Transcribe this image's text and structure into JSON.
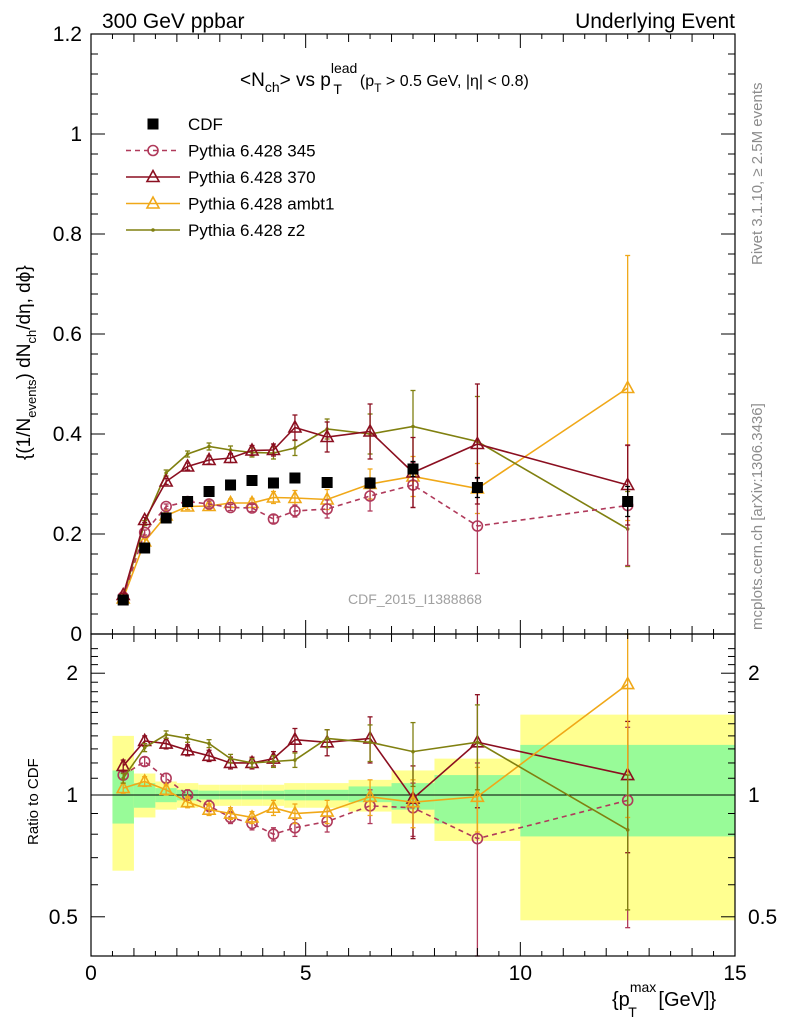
{
  "header": {
    "left": "300 GeV ppbar",
    "right": "Underlying Event"
  },
  "side": {
    "rivet": "Rivet 3.1.10, ≥ 2.5M events",
    "mcplots": "mcplots.cern.ch [arXiv:1306.3436]"
  },
  "watermark": "CDF_2015_I1388868",
  "main_title": {
    "pre": "<N",
    "sub1": "ch",
    "mid": "> vs p",
    "sup": "lead",
    "sub2": "T",
    "cut_a": "(p",
    "cut_sub": "T",
    "cut_b": " > 0.5 GeV, |η| < 0.8)"
  },
  "ylabel_main": {
    "a": "{(1/N",
    "sub1": "events",
    "b": ") dN",
    "sub2": "ch",
    "c": "/dη, dϕ}"
  },
  "ylabel_ratio": "Ratio to CDF",
  "xlabel": {
    "a": "{p",
    "sup": "max",
    "sub": "T",
    "b": " [GeV]}"
  },
  "colors": {
    "cdf": "#000000",
    "p345": "#b03a5b",
    "p370": "#8b0f20",
    "ambt1": "#f0a818",
    "z2": "#808010",
    "band_green": "#98fb98",
    "band_yellow": "#ffff90"
  },
  "chart_data": [
    {
      "type": "scatter",
      "xlim": [
        0,
        15
      ],
      "ylim": [
        0,
        1.2
      ],
      "x_ticks": [
        "0",
        "5",
        "10",
        "15"
      ],
      "y_ticks": [
        "0",
        "0.2",
        "0.4",
        "0.6",
        "0.8",
        "1",
        "1.2"
      ],
      "legend": {
        "placement": "top-left",
        "entries": [
          "CDF",
          "Pythia 6.428 345",
          "Pythia 6.428 370",
          "Pythia 6.428 ambt1",
          "Pythia 6.428 z2"
        ]
      },
      "series": [
        {
          "name": "CDF",
          "marker": "square",
          "color": "#000000",
          "x": [
            0.75,
            1.25,
            1.75,
            2.25,
            2.75,
            3.25,
            3.75,
            4.25,
            4.75,
            5.5,
            6.5,
            7.5,
            9.0,
            12.5
          ],
          "y": [
            0.068,
            0.172,
            0.232,
            0.265,
            0.285,
            0.298,
            0.307,
            0.302,
            0.312,
            0.303,
            0.302,
            0.33,
            0.293,
            0.265
          ],
          "err": [
            0.005,
            0.005,
            0.006,
            0.006,
            0.006,
            0.006,
            0.006,
            0.006,
            0.007,
            0.008,
            0.01,
            0.015,
            0.02,
            0.03
          ]
        },
        {
          "name": "Pythia 6.428 345",
          "marker": "open-circle",
          "dashed": true,
          "color": "#b03a5b",
          "x": [
            0.75,
            1.25,
            1.75,
            2.25,
            2.75,
            3.25,
            3.75,
            4.25,
            4.75,
            5.5,
            6.5,
            7.5,
            9.0,
            12.5
          ],
          "y": [
            0.074,
            0.203,
            0.255,
            0.265,
            0.26,
            0.253,
            0.252,
            0.23,
            0.246,
            0.25,
            0.276,
            0.298,
            0.216,
            0.257
          ],
          "err": [
            0.003,
            0.005,
            0.005,
            0.005,
            0.006,
            0.006,
            0.007,
            0.008,
            0.012,
            0.018,
            0.03,
            0.045,
            0.095,
            0.12
          ]
        },
        {
          "name": "Pythia 6.428 370",
          "marker": "open-triangle",
          "color": "#8b0f20",
          "x": [
            0.75,
            1.25,
            1.75,
            2.25,
            2.75,
            3.25,
            3.75,
            4.25,
            4.75,
            5.5,
            6.5,
            7.5,
            9.0,
            12.5
          ],
          "y": [
            0.078,
            0.228,
            0.305,
            0.335,
            0.348,
            0.352,
            0.367,
            0.368,
            0.413,
            0.394,
            0.405,
            0.323,
            0.38,
            0.298
          ],
          "err": [
            0.003,
            0.005,
            0.006,
            0.007,
            0.008,
            0.009,
            0.01,
            0.012,
            0.025,
            0.03,
            0.055,
            0.07,
            0.12,
            0.08
          ]
        },
        {
          "name": "Pythia 6.428 ambt1",
          "marker": "open-triangle",
          "color": "#f0a818",
          "x": [
            0.75,
            1.25,
            1.75,
            2.25,
            2.75,
            3.25,
            3.75,
            4.25,
            4.75,
            5.5,
            6.5,
            7.5,
            9.0,
            12.5
          ],
          "y": [
            0.071,
            0.185,
            0.237,
            0.255,
            0.256,
            0.262,
            0.262,
            0.273,
            0.272,
            0.269,
            0.3,
            0.315,
            0.291,
            0.492
          ],
          "err": [
            0.003,
            0.005,
            0.005,
            0.006,
            0.007,
            0.008,
            0.009,
            0.012,
            0.015,
            0.02,
            0.03,
            0.04,
            0.05,
            0.265
          ]
        },
        {
          "name": "Pythia 6.428 z2",
          "marker": "dot",
          "color": "#808010",
          "x": [
            0.75,
            1.25,
            1.75,
            2.25,
            2.75,
            3.25,
            3.75,
            4.25,
            4.75,
            5.5,
            6.5,
            7.5,
            9.0,
            12.5
          ],
          "y": [
            0.074,
            0.222,
            0.322,
            0.36,
            0.375,
            0.368,
            0.363,
            0.362,
            0.372,
            0.41,
            0.4,
            0.415,
            0.385,
            0.21
          ],
          "err": [
            0.003,
            0.005,
            0.006,
            0.006,
            0.007,
            0.008,
            0.009,
            0.012,
            0.015,
            0.02,
            0.04,
            0.072,
            0.09,
            0.075
          ]
        }
      ]
    },
    {
      "type": "scatter",
      "xlim": [
        0,
        15
      ],
      "ylim": [
        0.4,
        2.5
      ],
      "x_ticks": [
        "0",
        "5",
        "10",
        "15"
      ],
      "y_ticks": [
        "0.5",
        "1",
        "2"
      ],
      "bands": [
        {
          "x0": 0.5,
          "x1": 1.0,
          "green": [
            0.85,
            1.15
          ],
          "yellow": [
            0.65,
            1.4
          ]
        },
        {
          "x0": 1.0,
          "x1": 1.5,
          "green": [
            0.93,
            1.07
          ],
          "yellow": [
            0.88,
            1.13
          ]
        },
        {
          "x0": 1.5,
          "x1": 2.0,
          "green": [
            0.96,
            1.04
          ],
          "yellow": [
            0.92,
            1.08
          ]
        },
        {
          "x0": 2.0,
          "x1": 2.5,
          "green": [
            0.97,
            1.03
          ],
          "yellow": [
            0.93,
            1.07
          ]
        },
        {
          "x0": 2.5,
          "x1": 3.0,
          "green": [
            0.975,
            1.025
          ],
          "yellow": [
            0.94,
            1.06
          ]
        },
        {
          "x0": 3.0,
          "x1": 3.5,
          "green": [
            0.975,
            1.025
          ],
          "yellow": [
            0.94,
            1.06
          ]
        },
        {
          "x0": 3.5,
          "x1": 4.0,
          "green": [
            0.975,
            1.025
          ],
          "yellow": [
            0.94,
            1.06
          ]
        },
        {
          "x0": 4.0,
          "x1": 4.5,
          "green": [
            0.975,
            1.025
          ],
          "yellow": [
            0.94,
            1.06
          ]
        },
        {
          "x0": 4.5,
          "x1": 5.0,
          "green": [
            0.97,
            1.03
          ],
          "yellow": [
            0.93,
            1.07
          ]
        },
        {
          "x0": 5.0,
          "x1": 6.0,
          "green": [
            0.97,
            1.03
          ],
          "yellow": [
            0.93,
            1.07
          ]
        },
        {
          "x0": 6.0,
          "x1": 7.0,
          "green": [
            0.96,
            1.05
          ],
          "yellow": [
            0.91,
            1.09
          ]
        },
        {
          "x0": 7.0,
          "x1": 8.0,
          "green": [
            0.92,
            1.07
          ],
          "yellow": [
            0.85,
            1.15
          ]
        },
        {
          "x0": 8.0,
          "x1": 10.0,
          "green": [
            0.85,
            1.12
          ],
          "yellow": [
            0.77,
            1.23
          ]
        },
        {
          "x0": 10.0,
          "x1": 15.0,
          "green": [
            0.79,
            1.33
          ],
          "yellow": [
            0.49,
            1.58
          ]
        }
      ],
      "series": [
        {
          "name": "Pythia 6.428 345",
          "x": [
            0.75,
            1.25,
            1.75,
            2.25,
            2.75,
            3.25,
            3.75,
            4.25,
            4.75,
            5.5,
            6.5,
            7.5,
            9.0,
            12.5
          ],
          "y": [
            1.12,
            1.21,
            1.1,
            1.0,
            0.94,
            0.88,
            0.85,
            0.8,
            0.83,
            0.86,
            0.94,
            0.93,
            0.78,
            0.97
          ],
          "err": [
            0.03,
            0.03,
            0.03,
            0.03,
            0.03,
            0.03,
            0.03,
            0.03,
            0.04,
            0.05,
            0.09,
            0.14,
            0.42,
            0.5
          ]
        },
        {
          "name": "Pythia 6.428 370",
          "x": [
            0.75,
            1.25,
            1.75,
            2.25,
            2.75,
            3.25,
            3.75,
            4.25,
            4.75,
            5.5,
            6.5,
            7.5,
            9.0,
            12.5
          ],
          "y": [
            1.18,
            1.36,
            1.34,
            1.29,
            1.25,
            1.2,
            1.2,
            1.23,
            1.37,
            1.35,
            1.38,
            0.98,
            1.35,
            1.12
          ],
          "err": [
            0.04,
            0.04,
            0.04,
            0.04,
            0.04,
            0.04,
            0.04,
            0.05,
            0.09,
            0.1,
            0.18,
            0.2,
            0.42,
            0.4
          ]
        },
        {
          "name": "Pythia 6.428 ambt1",
          "x": [
            0.75,
            1.25,
            1.75,
            2.25,
            2.75,
            3.25,
            3.75,
            4.25,
            4.75,
            5.5,
            6.5,
            7.5,
            9.0,
            12.5
          ],
          "y": [
            1.04,
            1.08,
            1.03,
            0.96,
            0.92,
            0.9,
            0.88,
            0.93,
            0.9,
            0.91,
            0.99,
            0.96,
            0.99,
            1.88
          ],
          "err": [
            0.03,
            0.03,
            0.03,
            0.03,
            0.03,
            0.03,
            0.03,
            0.04,
            0.05,
            0.06,
            0.1,
            0.13,
            0.18,
            1.0
          ]
        },
        {
          "name": "Pythia 6.428 z2",
          "x": [
            0.75,
            1.25,
            1.75,
            2.25,
            2.75,
            3.25,
            3.75,
            4.25,
            4.75,
            5.5,
            6.5,
            7.5,
            9.0,
            12.5
          ],
          "y": [
            1.1,
            1.31,
            1.41,
            1.38,
            1.34,
            1.23,
            1.2,
            1.21,
            1.22,
            1.38,
            1.35,
            1.28,
            1.35,
            0.82
          ],
          "err": [
            0.03,
            0.03,
            0.03,
            0.03,
            0.03,
            0.03,
            0.03,
            0.04,
            0.05,
            0.07,
            0.14,
            0.23,
            0.32,
            0.3
          ]
        }
      ]
    }
  ]
}
